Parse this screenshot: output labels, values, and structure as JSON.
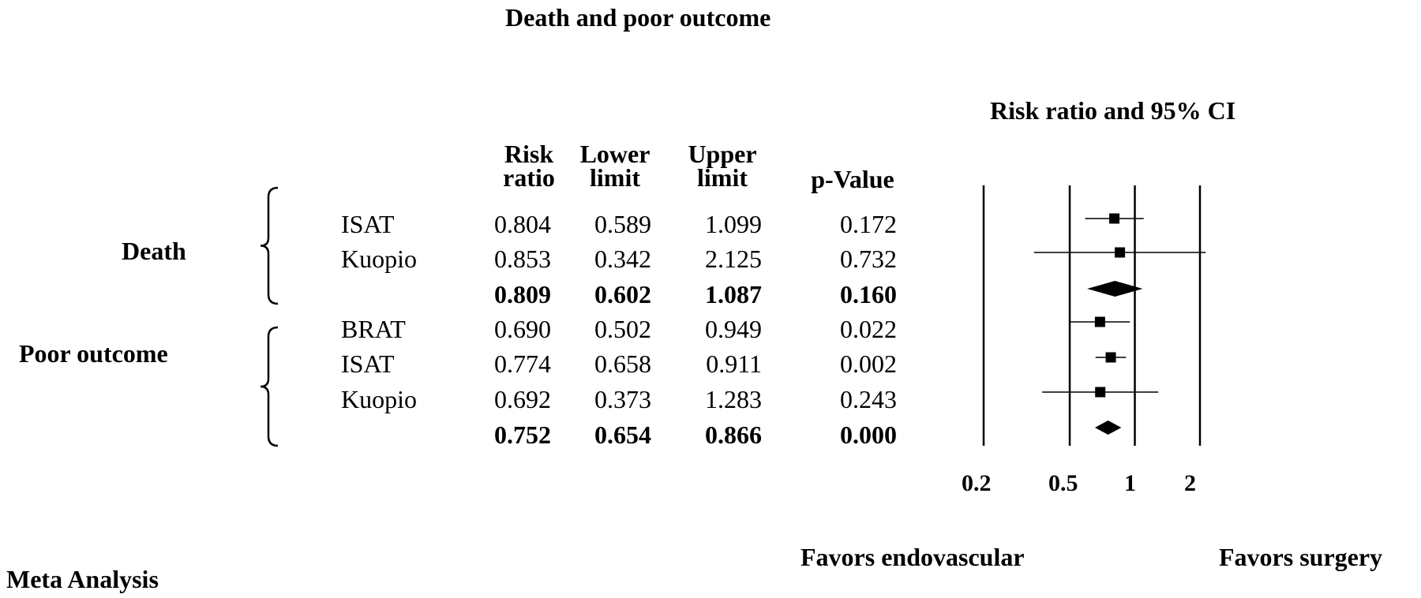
{
  "title": "Death and poor outcome",
  "plot_title": "Risk ratio and 95% CI",
  "footer_left": "Meta Analysis",
  "favors_left": "Favors endovascular",
  "favors_right": "Favors surgery",
  "columns": {
    "rr": [
      "Risk",
      "ratio"
    ],
    "lower": [
      "Lower",
      "limit"
    ],
    "upper": [
      "Upper",
      "limit"
    ],
    "p": "p-Value"
  },
  "groups": [
    {
      "label": "Death"
    },
    {
      "label": "Poor outcome"
    }
  ],
  "rows": [
    {
      "study": "ISAT",
      "rr": "0.804",
      "lower": "0.589",
      "upper": "1.099",
      "p": "0.172",
      "summary": false
    },
    {
      "study": "Kuopio",
      "rr": "0.853",
      "lower": "0.342",
      "upper": "2.125",
      "p": "0.732",
      "summary": false
    },
    {
      "study": "",
      "rr": "0.809",
      "lower": "0.602",
      "upper": "1.087",
      "p": "0.160",
      "summary": true
    },
    {
      "study": "BRAT",
      "rr": "0.690",
      "lower": "0.502",
      "upper": "0.949",
      "p": "0.022",
      "summary": false
    },
    {
      "study": "ISAT",
      "rr": "0.774",
      "lower": "0.658",
      "upper": "0.911",
      "p": "0.002",
      "summary": false
    },
    {
      "study": "Kuopio",
      "rr": "0.692",
      "lower": "0.373",
      "upper": "1.283",
      "p": "0.243",
      "summary": false
    },
    {
      "study": "",
      "rr": "0.752",
      "lower": "0.654",
      "upper": "0.866",
      "p": "0.000",
      "summary": true
    }
  ],
  "chart_data": {
    "type": "forest",
    "title": "Risk ratio and 95% CI",
    "x_scale": "log",
    "xlim": [
      0.2,
      2
    ],
    "x_ticks": [
      "0.2",
      "0.5",
      "1",
      "2"
    ],
    "reference_line": 1,
    "series": [
      {
        "group": "Death",
        "study": "ISAT",
        "rr": 0.804,
        "lower": 0.589,
        "upper": 1.099,
        "marker": "square"
      },
      {
        "group": "Death",
        "study": "Kuopio",
        "rr": 0.853,
        "lower": 0.342,
        "upper": 2.125,
        "marker": "square"
      },
      {
        "group": "Death",
        "study": "",
        "rr": 0.809,
        "lower": 0.602,
        "upper": 1.087,
        "marker": "diamond"
      },
      {
        "group": "Poor outcome",
        "study": "BRAT",
        "rr": 0.69,
        "lower": 0.502,
        "upper": 0.949,
        "marker": "square"
      },
      {
        "group": "Poor outcome",
        "study": "ISAT",
        "rr": 0.774,
        "lower": 0.658,
        "upper": 0.911,
        "marker": "square"
      },
      {
        "group": "Poor outcome",
        "study": "Kuopio",
        "rr": 0.692,
        "lower": 0.373,
        "upper": 1.283,
        "marker": "square"
      },
      {
        "group": "Poor outcome",
        "study": "",
        "rr": 0.752,
        "lower": 0.654,
        "upper": 0.866,
        "marker": "diamond"
      }
    ]
  }
}
